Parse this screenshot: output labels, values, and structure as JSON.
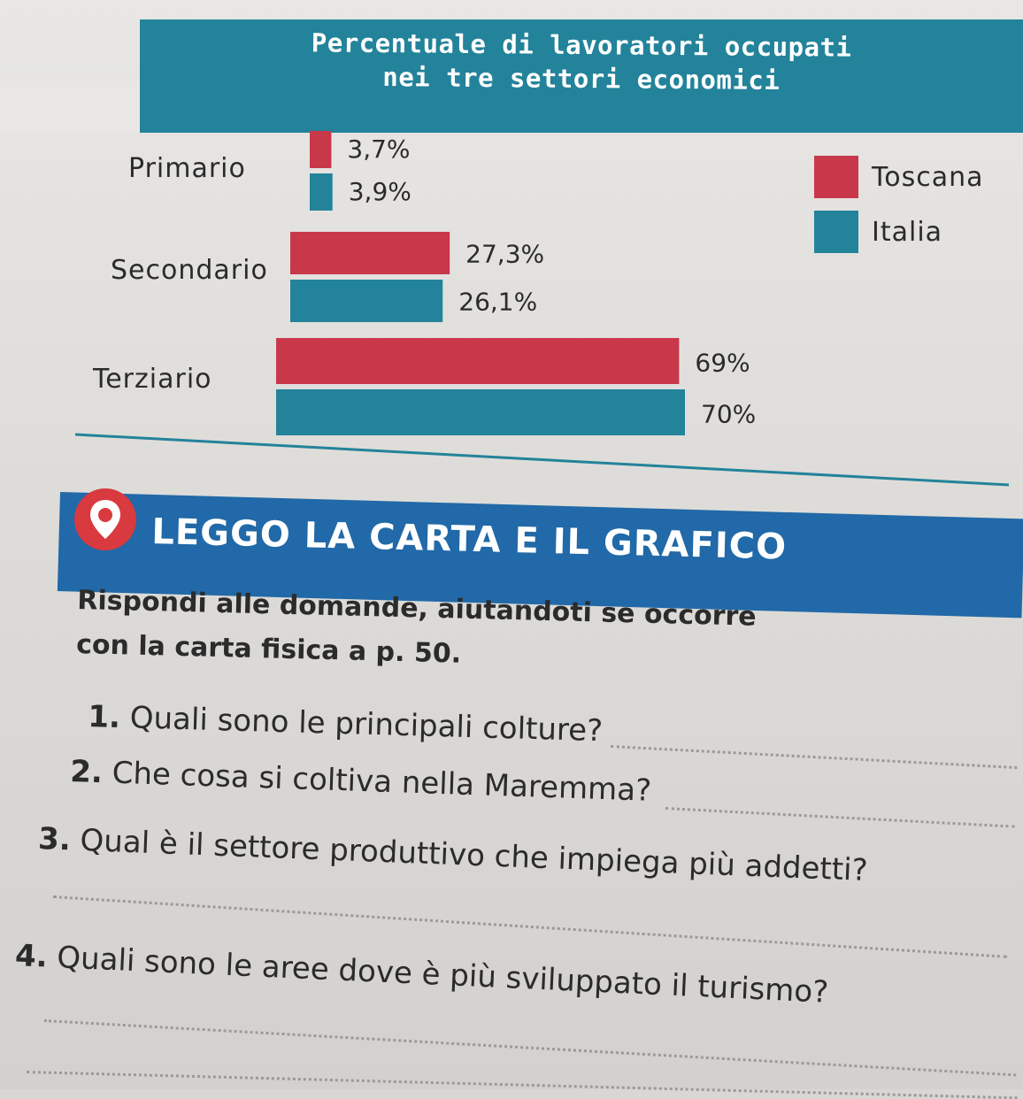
{
  "chart_data": {
    "type": "bar",
    "orientation": "horizontal",
    "title": "Percentuale di lavoratori occupati nei tre settori economici",
    "title_lines": [
      "Percentuale di lavoratori occupati",
      "nei tre settori economici"
    ],
    "categories": [
      "Primario",
      "Secondario",
      "Terziario"
    ],
    "series": [
      {
        "name": "Toscana",
        "values": [
          3.7,
          27.3,
          69
        ],
        "labels": [
          "3,7%",
          "27,3%",
          "69%"
        ],
        "color": "#c8384a"
      },
      {
        "name": "Italia",
        "values": [
          3.9,
          26.1,
          70
        ],
        "labels": [
          "3,9%",
          "26,1%",
          "70%"
        ],
        "color": "#23839a"
      }
    ],
    "unit": "%",
    "xlim": [
      0,
      70
    ],
    "legend_position": "top-right",
    "grid": false
  },
  "section": {
    "title": "LEGGO LA CARTA E IL GRAFICO",
    "intro_line1": "Rispondi alle domande, aiutandoti se occorre",
    "intro_line2": "con la carta fisica a p. 50."
  },
  "questions": [
    {
      "number": "1.",
      "text": "Quali sono le principali colture?"
    },
    {
      "number": "2.",
      "text": "Che cosa si coltiva nella Maremma?"
    },
    {
      "number": "3.",
      "text": "Qual è il settore produttivo che impiega più addetti?"
    },
    {
      "number": "4.",
      "text": "Quali sono le aree dove è più sviluppato il turismo?"
    }
  ],
  "colors": {
    "toscana": "#c8384a",
    "italia": "#23839a",
    "header": "#23839a",
    "section_band": "#2169a8",
    "pin": "#d83a3f"
  },
  "icons": {
    "section_pin": "map-pin-icon"
  }
}
